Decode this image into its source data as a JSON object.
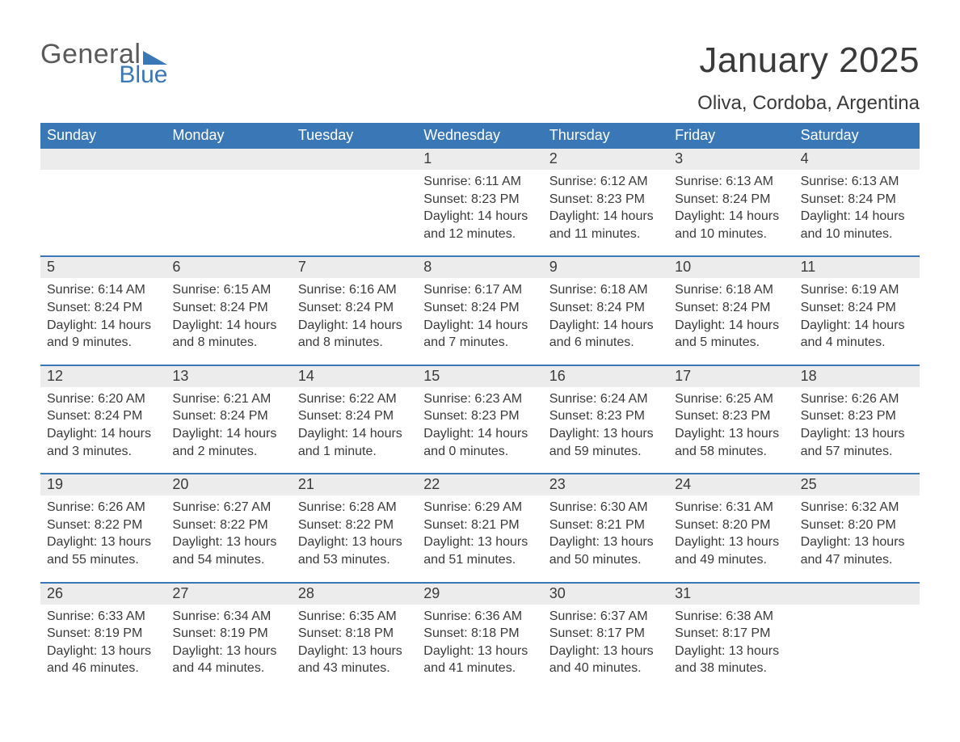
{
  "logo": {
    "line1": "General",
    "line2": "Blue",
    "brand_color": "#3a77b7",
    "text_color": "#5a5a5a"
  },
  "title": "January 2025",
  "location": "Oliva, Cordoba, Argentina",
  "colors": {
    "header_bg": "#3a77b7",
    "header_text": "#ffffff",
    "daynum_bg": "#ececec",
    "rule": "#3a77b7",
    "body_text": "#3a3a3a",
    "page_bg": "#ffffff"
  },
  "fonts": {
    "title_size": 44,
    "location_size": 24,
    "dayhead_size": 18,
    "body_size": 16
  },
  "day_names": [
    "Sunday",
    "Monday",
    "Tuesday",
    "Wednesday",
    "Thursday",
    "Friday",
    "Saturday"
  ],
  "weeks": [
    [
      null,
      null,
      null,
      {
        "n": "1",
        "sunrise": "Sunrise: 6:11 AM",
        "sunset": "Sunset: 8:23 PM",
        "daylight": "Daylight: 14 hours and 12 minutes."
      },
      {
        "n": "2",
        "sunrise": "Sunrise: 6:12 AM",
        "sunset": "Sunset: 8:23 PM",
        "daylight": "Daylight: 14 hours and 11 minutes."
      },
      {
        "n": "3",
        "sunrise": "Sunrise: 6:13 AM",
        "sunset": "Sunset: 8:24 PM",
        "daylight": "Daylight: 14 hours and 10 minutes."
      },
      {
        "n": "4",
        "sunrise": "Sunrise: 6:13 AM",
        "sunset": "Sunset: 8:24 PM",
        "daylight": "Daylight: 14 hours and 10 minutes."
      }
    ],
    [
      {
        "n": "5",
        "sunrise": "Sunrise: 6:14 AM",
        "sunset": "Sunset: 8:24 PM",
        "daylight": "Daylight: 14 hours and 9 minutes."
      },
      {
        "n": "6",
        "sunrise": "Sunrise: 6:15 AM",
        "sunset": "Sunset: 8:24 PM",
        "daylight": "Daylight: 14 hours and 8 minutes."
      },
      {
        "n": "7",
        "sunrise": "Sunrise: 6:16 AM",
        "sunset": "Sunset: 8:24 PM",
        "daylight": "Daylight: 14 hours and 8 minutes."
      },
      {
        "n": "8",
        "sunrise": "Sunrise: 6:17 AM",
        "sunset": "Sunset: 8:24 PM",
        "daylight": "Daylight: 14 hours and 7 minutes."
      },
      {
        "n": "9",
        "sunrise": "Sunrise: 6:18 AM",
        "sunset": "Sunset: 8:24 PM",
        "daylight": "Daylight: 14 hours and 6 minutes."
      },
      {
        "n": "10",
        "sunrise": "Sunrise: 6:18 AM",
        "sunset": "Sunset: 8:24 PM",
        "daylight": "Daylight: 14 hours and 5 minutes."
      },
      {
        "n": "11",
        "sunrise": "Sunrise: 6:19 AM",
        "sunset": "Sunset: 8:24 PM",
        "daylight": "Daylight: 14 hours and 4 minutes."
      }
    ],
    [
      {
        "n": "12",
        "sunrise": "Sunrise: 6:20 AM",
        "sunset": "Sunset: 8:24 PM",
        "daylight": "Daylight: 14 hours and 3 minutes."
      },
      {
        "n": "13",
        "sunrise": "Sunrise: 6:21 AM",
        "sunset": "Sunset: 8:24 PM",
        "daylight": "Daylight: 14 hours and 2 minutes."
      },
      {
        "n": "14",
        "sunrise": "Sunrise: 6:22 AM",
        "sunset": "Sunset: 8:24 PM",
        "daylight": "Daylight: 14 hours and 1 minute."
      },
      {
        "n": "15",
        "sunrise": "Sunrise: 6:23 AM",
        "sunset": "Sunset: 8:23 PM",
        "daylight": "Daylight: 14 hours and 0 minutes."
      },
      {
        "n": "16",
        "sunrise": "Sunrise: 6:24 AM",
        "sunset": "Sunset: 8:23 PM",
        "daylight": "Daylight: 13 hours and 59 minutes."
      },
      {
        "n": "17",
        "sunrise": "Sunrise: 6:25 AM",
        "sunset": "Sunset: 8:23 PM",
        "daylight": "Daylight: 13 hours and 58 minutes."
      },
      {
        "n": "18",
        "sunrise": "Sunrise: 6:26 AM",
        "sunset": "Sunset: 8:23 PM",
        "daylight": "Daylight: 13 hours and 57 minutes."
      }
    ],
    [
      {
        "n": "19",
        "sunrise": "Sunrise: 6:26 AM",
        "sunset": "Sunset: 8:22 PM",
        "daylight": "Daylight: 13 hours and 55 minutes."
      },
      {
        "n": "20",
        "sunrise": "Sunrise: 6:27 AM",
        "sunset": "Sunset: 8:22 PM",
        "daylight": "Daylight: 13 hours and 54 minutes."
      },
      {
        "n": "21",
        "sunrise": "Sunrise: 6:28 AM",
        "sunset": "Sunset: 8:22 PM",
        "daylight": "Daylight: 13 hours and 53 minutes."
      },
      {
        "n": "22",
        "sunrise": "Sunrise: 6:29 AM",
        "sunset": "Sunset: 8:21 PM",
        "daylight": "Daylight: 13 hours and 51 minutes."
      },
      {
        "n": "23",
        "sunrise": "Sunrise: 6:30 AM",
        "sunset": "Sunset: 8:21 PM",
        "daylight": "Daylight: 13 hours and 50 minutes."
      },
      {
        "n": "24",
        "sunrise": "Sunrise: 6:31 AM",
        "sunset": "Sunset: 8:20 PM",
        "daylight": "Daylight: 13 hours and 49 minutes."
      },
      {
        "n": "25",
        "sunrise": "Sunrise: 6:32 AM",
        "sunset": "Sunset: 8:20 PM",
        "daylight": "Daylight: 13 hours and 47 minutes."
      }
    ],
    [
      {
        "n": "26",
        "sunrise": "Sunrise: 6:33 AM",
        "sunset": "Sunset: 8:19 PM",
        "daylight": "Daylight: 13 hours and 46 minutes."
      },
      {
        "n": "27",
        "sunrise": "Sunrise: 6:34 AM",
        "sunset": "Sunset: 8:19 PM",
        "daylight": "Daylight: 13 hours and 44 minutes."
      },
      {
        "n": "28",
        "sunrise": "Sunrise: 6:35 AM",
        "sunset": "Sunset: 8:18 PM",
        "daylight": "Daylight: 13 hours and 43 minutes."
      },
      {
        "n": "29",
        "sunrise": "Sunrise: 6:36 AM",
        "sunset": "Sunset: 8:18 PM",
        "daylight": "Daylight: 13 hours and 41 minutes."
      },
      {
        "n": "30",
        "sunrise": "Sunrise: 6:37 AM",
        "sunset": "Sunset: 8:17 PM",
        "daylight": "Daylight: 13 hours and 40 minutes."
      },
      {
        "n": "31",
        "sunrise": "Sunrise: 6:38 AM",
        "sunset": "Sunset: 8:17 PM",
        "daylight": "Daylight: 13 hours and 38 minutes."
      },
      null
    ]
  ]
}
